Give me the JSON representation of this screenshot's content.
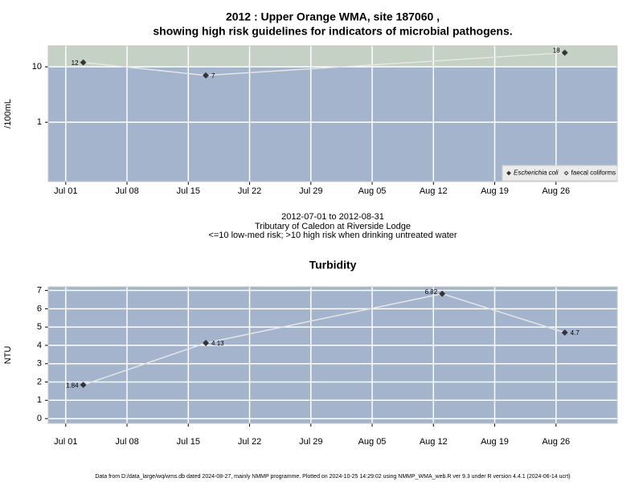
{
  "chart_data": [
    {
      "type": "line",
      "title": "2012 : Upper Orange WMA, site 187060 ,",
      "subtitle": "showing high risk guidelines for indicators of microbial pathogens.",
      "ylabel": "/100mL",
      "log_scale": true,
      "threshold": 10,
      "below_color": "#a3b4cc",
      "above_color": "#c5d1c4",
      "xlim": [
        "Jun 29",
        "Sep 02"
      ],
      "xticks": [
        "Jul 01",
        "Jul 08",
        "Jul 15",
        "Jul 22",
        "Jul 29",
        "Aug 05",
        "Aug 12",
        "Aug 19",
        "Aug 26"
      ],
      "ylim": [
        0.085,
        24
      ],
      "yticks": [
        1,
        10
      ],
      "grid": true,
      "legend": "lower right",
      "series": [
        {
          "name": "Escherichia coli",
          "color": "#333333",
          "marker": "filled",
          "x": [
            "Jul 03",
            "Jul 17",
            "Aug 27"
          ],
          "values": [
            12,
            7,
            18
          ]
        },
        {
          "name": "faecal coliforms",
          "color": "#333333",
          "marker": "hollow",
          "x": [],
          "values": []
        }
      ]
    },
    {
      "type": "line",
      "title": "Turbidity",
      "ylabel": "NTU",
      "log_scale": false,
      "below_color": "#a3b4cc",
      "xlim": [
        "Jun 29",
        "Sep 02"
      ],
      "xticks": [
        "Jul 01",
        "Jul 08",
        "Jul 15",
        "Jul 22",
        "Jul 29",
        "Aug 05",
        "Aug 12",
        "Aug 19",
        "Aug 26"
      ],
      "ylim": [
        -0.26,
        7.2
      ],
      "yticks": [
        0,
        1,
        2,
        3,
        4,
        5,
        6,
        7
      ],
      "grid": true,
      "series": [
        {
          "name": "Turbidity",
          "color": "#333333",
          "marker": "filled",
          "x": [
            "Jul 03",
            "Jul 17",
            "Aug 13",
            "Aug 27"
          ],
          "values": [
            1.84,
            4.13,
            6.82,
            4.7
          ]
        }
      ]
    }
  ],
  "caption": [
    "2012-07-01 to 2012-08-31",
    "Tributary of Caledon at Riverside Lodge",
    "<=10 low-med risk; >10 high risk when drinking untreated water"
  ],
  "footer": "Data from D:/data_large/wq/wms.db dated 2024-08-27, mainly NMMP programme. Plotted on 2024-10-25 14:29:02 using NMMP_WMA_web.R ver 9.3 under R version 4.4.1 (2024-06-14 ucrt)"
}
